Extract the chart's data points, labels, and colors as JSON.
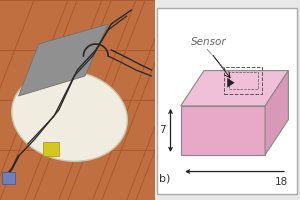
{
  "bg_color": "#e8e8e8",
  "photo_bg": "#c07040",
  "tile_color": "#b05830",
  "stone_color": "#909090",
  "stone_edge": "#707070",
  "mat_color": "#f0ede0",
  "mat_edge": "#c8c4b0",
  "cable_color": "#282828",
  "yellow_label": "#d4c820",
  "blue_connector": "#7080b8",
  "diagram_bg": "#ffffff",
  "diagram_border": "#aaaaaa",
  "box_front_color": "#e8a8c8",
  "box_top_color": "#f0c0d8",
  "box_right_color": "#d898b8",
  "box_edge_color": "#888888",
  "dash_color": "#555555",
  "arrow_color": "#222222",
  "dashdot_color": "#999999",
  "sensor_text_color": "#666666",
  "label_color": "#333333",
  "sensor_label": "Sensor",
  "label_7": "7",
  "label_18": "18",
  "label_b": "b)"
}
